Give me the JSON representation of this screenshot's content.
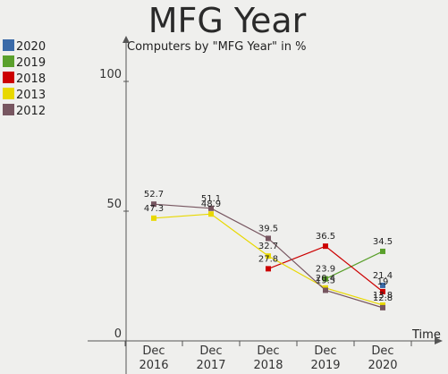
{
  "chart_data": {
    "type": "line",
    "title": "MFG Year",
    "subtitle": "Computers by \"MFG Year\" in %",
    "xlabel": "Time",
    "ylabel": "",
    "ylim": [
      0,
      110
    ],
    "yticks": [
      "0",
      "50",
      "100"
    ],
    "categories": [
      "Dec\n2016",
      "Dec\n2017",
      "Dec\n2018",
      "Dec\n2019",
      "Dec\n2020"
    ],
    "legend_position": "top-left",
    "series": [
      {
        "name": "2020",
        "color": "#3a6aa8",
        "values": [
          null,
          null,
          null,
          null,
          21.4
        ],
        "labels": [
          "",
          "",
          "",
          "",
          "21.4"
        ]
      },
      {
        "name": "2019",
        "color": "#5aa02c",
        "values": [
          null,
          null,
          null,
          23.9,
          34.5
        ],
        "labels": [
          "",
          "",
          "",
          "23.9",
          "34.5"
        ]
      },
      {
        "name": "2018",
        "color": "#cc0000",
        "values": [
          null,
          null,
          27.8,
          36.5,
          19.0
        ],
        "labels": [
          "",
          "",
          "27.8",
          "36.5",
          "19"
        ]
      },
      {
        "name": "2013",
        "color": "#e8d800",
        "values": [
          47.3,
          48.9,
          32.7,
          20.4,
          13.8
        ],
        "labels": [
          "47.3",
          "48.9",
          "32.7",
          "20.4",
          "13.8"
        ]
      },
      {
        "name": "2012",
        "color": "#775660",
        "values": [
          52.7,
          51.1,
          39.5,
          19.5,
          12.8
        ],
        "labels": [
          "52.7",
          "51.1",
          "39.5",
          "19.5",
          "12.8"
        ]
      }
    ]
  }
}
